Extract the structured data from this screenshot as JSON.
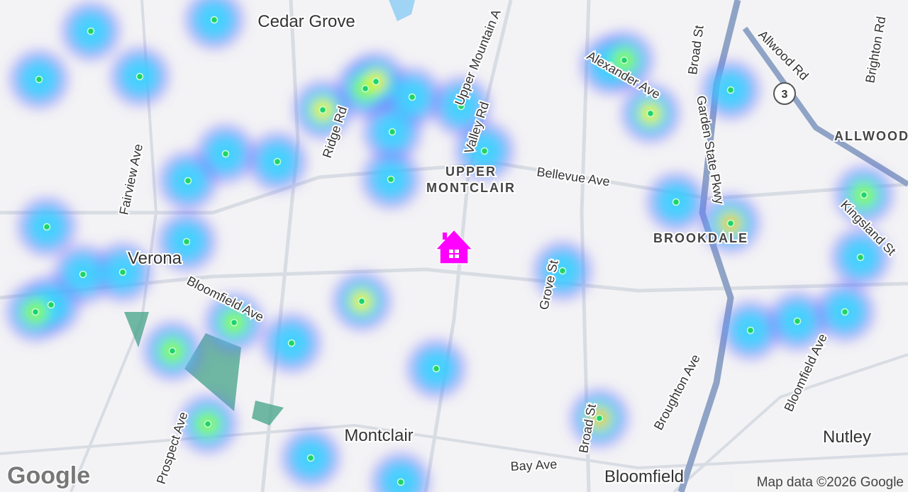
{
  "map": {
    "places": [
      "Cedar Grove",
      "UPPER",
      "MONTCLAIR",
      "Verona",
      "BROOKDALE",
      "ALLWOOD",
      "Montclair",
      "Nutley",
      "Bloomfield"
    ],
    "streets": [
      "Fairview Ave",
      "Ridge Rd",
      "Upper Mountain A",
      "Valley Rd",
      "Bellevue Ave",
      "Bloomfield Ave",
      "Grove St",
      "Prospect Ave",
      "Bay Ave",
      "Broad St",
      "Broughton Ave",
      "Garden State Pkwy",
      "Kingsland St",
      "Allwood Rd",
      "Brighton Rd",
      "Alexander Ave",
      "Broad St",
      "Bloomfield Ave"
    ],
    "route_shield": "3",
    "logo": "Google",
    "attribution": "Map data ©2026 Google"
  }
}
